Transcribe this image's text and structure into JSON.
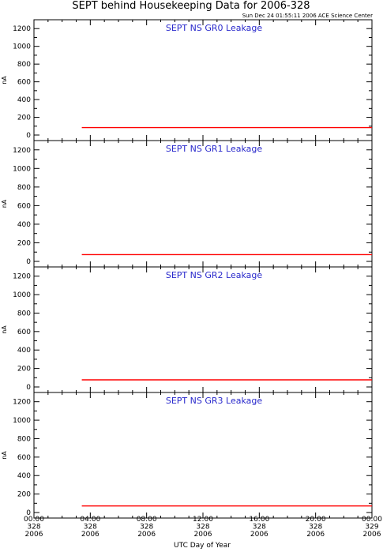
{
  "title": "SEPT behind Housekeeping Data for 2006-328",
  "subtitle": "Sun Dec 24 01:55:11 2006 ACE Science Center",
  "colors": {
    "series": "#ff0000",
    "panel_title": "#2a2acc",
    "axis": "#000000"
  },
  "chart_data": [
    {
      "type": "line",
      "title": "SEPT NS GR0 Leakage",
      "ylabel": "nA",
      "ylim": [
        0,
        1300
      ],
      "yticks": [
        0,
        200,
        400,
        600,
        800,
        1000,
        1200
      ],
      "xlim": [
        0,
        24
      ],
      "series": [
        {
          "x": [
            3.4,
            24
          ],
          "values": [
            84,
            84
          ]
        }
      ]
    },
    {
      "type": "line",
      "title": "SEPT NS GR1 Leakage",
      "ylabel": "nA",
      "ylim": [
        0,
        1300
      ],
      "yticks": [
        0,
        200,
        400,
        600,
        800,
        1000,
        1200
      ],
      "xlim": [
        0,
        24
      ],
      "series": [
        {
          "x": [
            3.4,
            24
          ],
          "values": [
            73,
            73
          ]
        }
      ]
    },
    {
      "type": "line",
      "title": "SEPT NS GR2 Leakage",
      "ylabel": "nA",
      "ylim": [
        0,
        1300
      ],
      "yticks": [
        0,
        200,
        400,
        600,
        800,
        1000,
        1200
      ],
      "xlim": [
        0,
        24
      ],
      "series": [
        {
          "x": [
            3.4,
            24
          ],
          "values": [
            77,
            77
          ]
        }
      ]
    },
    {
      "type": "line",
      "title": "SEPT NS GR3 Leakage",
      "ylabel": "nA",
      "ylim": [
        0,
        1300
      ],
      "yticks": [
        0,
        200,
        400,
        600,
        800,
        1000,
        1200
      ],
      "xlim": [
        0,
        24
      ],
      "series": [
        {
          "x": [
            3.4,
            24
          ],
          "values": [
            71,
            71
          ]
        }
      ]
    }
  ],
  "x_axis": {
    "label": "UTC Day of Year",
    "ticks": [
      {
        "value": 0,
        "time": "00:00",
        "doy": "328",
        "year": "2006"
      },
      {
        "value": 4,
        "time": "04:00",
        "doy": "328",
        "year": "2006"
      },
      {
        "value": 8,
        "time": "08:00",
        "doy": "328",
        "year": "2006"
      },
      {
        "value": 12,
        "time": "12:00",
        "doy": "328",
        "year": "2006"
      },
      {
        "value": 16,
        "time": "16:00",
        "doy": "328",
        "year": "2006"
      },
      {
        "value": 20,
        "time": "20:00",
        "doy": "328",
        "year": "2006"
      },
      {
        "value": 24,
        "time": "00:00",
        "doy": "329",
        "year": "2006"
      }
    ]
  }
}
